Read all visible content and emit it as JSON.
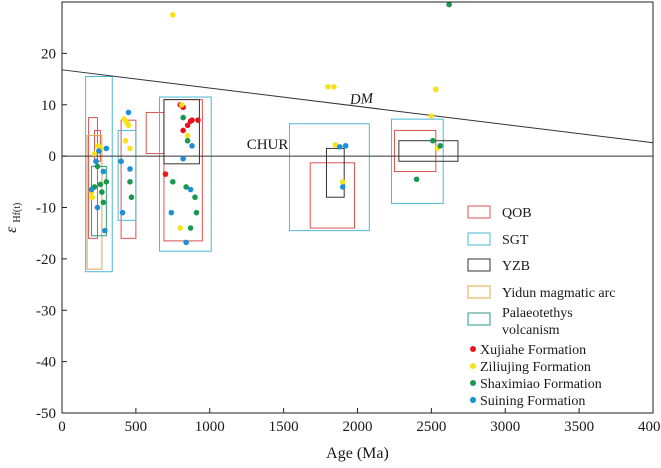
{
  "chart_data": {
    "type": "scatter",
    "xlabel": "Age (Ma)",
    "ylabel": "εHf(t)",
    "xlim": [
      0,
      4000
    ],
    "ylim": [
      -50,
      30
    ],
    "x_ticks": [
      0,
      500,
      1000,
      1500,
      2000,
      2500,
      3000,
      3500,
      4000
    ],
    "y_ticks": [
      -50,
      -40,
      -30,
      -20,
      -10,
      0,
      10,
      20
    ],
    "ylabel_main": "ε",
    "ylabel_sub": "Hf(t)",
    "grid": false,
    "legend_position": "right",
    "reference_lines": [
      {
        "name": "DM",
        "label": "DM",
        "points": [
          [
            0,
            16.8
          ],
          [
            4000,
            2.6
          ]
        ],
        "label_at": [
          1950,
          10.1
        ]
      },
      {
        "name": "CHUR",
        "label": "CHUR",
        "points": [
          [
            0,
            0
          ],
          [
            4000,
            0
          ]
        ],
        "label_at": [
          1250,
          1.4
        ]
      }
    ],
    "fields": [
      {
        "name": "QOB",
        "color": "#d9534f",
        "rects": [
          [
            180,
            240,
            -16,
            7.5
          ],
          [
            220,
            260,
            -1,
            5
          ],
          [
            400,
            500,
            -16,
            7
          ],
          [
            570,
            690,
            0.5,
            8.5
          ],
          [
            690,
            950,
            -16.5,
            11
          ],
          [
            1680,
            1980,
            -14,
            -1.3
          ],
          [
            2250,
            2530,
            -3,
            5
          ]
        ]
      },
      {
        "name": "SGT",
        "color": "#4bb8d8",
        "rects": [
          [
            160,
            340,
            -22.5,
            15.5
          ],
          [
            380,
            500,
            -12.5,
            5
          ],
          [
            660,
            1010,
            -18.5,
            11.5
          ],
          [
            1540,
            2080,
            -14.5,
            6.3
          ],
          [
            2230,
            2580,
            -9.2,
            7.2
          ]
        ]
      },
      {
        "name": "YZB",
        "color": "#333333",
        "rects": [
          [
            690,
            930,
            -1.5,
            11
          ],
          [
            1790,
            1910,
            -8,
            1.5
          ],
          [
            2280,
            2680,
            -1,
            3
          ]
        ]
      },
      {
        "name": "Yidun magmatic arc",
        "color": "#e0a84a",
        "rects": [
          [
            170,
            270,
            -22,
            4
          ]
        ]
      },
      {
        "name": "Palaeotethys volcanism",
        "color": "#2a9a80",
        "rects": [
          [
            200,
            300,
            -15.5,
            -2
          ]
        ]
      }
    ],
    "series": [
      {
        "name": "Xujiahe Formation",
        "color": "#e8141a",
        "points": [
          [
            700,
            -3.5
          ],
          [
            800,
            10
          ],
          [
            820,
            9.5
          ],
          [
            820,
            5
          ],
          [
            850,
            6
          ],
          [
            870,
            6.8
          ],
          [
            880,
            7
          ],
          [
            920,
            7
          ]
        ]
      },
      {
        "name": "Ziliujing Formation",
        "color": "#f5e21b",
        "points": [
          [
            200,
            -7
          ],
          [
            205,
            -8
          ],
          [
            220,
            0.5
          ],
          [
            245,
            2
          ],
          [
            260,
            1.5
          ],
          [
            420,
            7.2
          ],
          [
            430,
            3
          ],
          [
            440,
            6.5
          ],
          [
            450,
            6
          ],
          [
            460,
            1.5
          ],
          [
            750,
            27.5
          ],
          [
            800,
            -14
          ],
          [
            810,
            10
          ],
          [
            850,
            4
          ],
          [
            1800,
            13.5
          ],
          [
            1840,
            13.5
          ],
          [
            1850,
            2.2
          ],
          [
            1900,
            -5
          ],
          [
            2500,
            7.8
          ],
          [
            2530,
            13
          ],
          [
            2540,
            1.5
          ]
        ]
      },
      {
        "name": "Shaximiao Formation",
        "color": "#1a9850",
        "points": [
          [
            220,
            -6
          ],
          [
            240,
            -2
          ],
          [
            260,
            -5.5
          ],
          [
            270,
            -7
          ],
          [
            280,
            -9
          ],
          [
            300,
            -5
          ],
          [
            460,
            -5
          ],
          [
            470,
            -8
          ],
          [
            750,
            -5
          ],
          [
            820,
            7.5
          ],
          [
            840,
            -6
          ],
          [
            850,
            3
          ],
          [
            870,
            -14
          ],
          [
            900,
            -8
          ],
          [
            910,
            -11
          ],
          [
            2400,
            -4.5
          ],
          [
            2510,
            3
          ],
          [
            2560,
            2
          ],
          [
            2620,
            29.5
          ]
        ]
      },
      {
        "name": "Suining Formation",
        "color": "#1e8fd6",
        "points": [
          [
            200,
            -6.5
          ],
          [
            230,
            -1
          ],
          [
            240,
            -10
          ],
          [
            250,
            1
          ],
          [
            280,
            -3
          ],
          [
            290,
            -14.5
          ],
          [
            300,
            1.5
          ],
          [
            400,
            -1
          ],
          [
            410,
            -11
          ],
          [
            450,
            8.5
          ],
          [
            460,
            -2.5
          ],
          [
            740,
            -11
          ],
          [
            820,
            -0.5
          ],
          [
            840,
            -16.8
          ],
          [
            870,
            -6.5
          ],
          [
            880,
            2
          ],
          [
            1880,
            1.8
          ],
          [
            1900,
            -6
          ],
          [
            1920,
            2
          ]
        ]
      }
    ]
  }
}
